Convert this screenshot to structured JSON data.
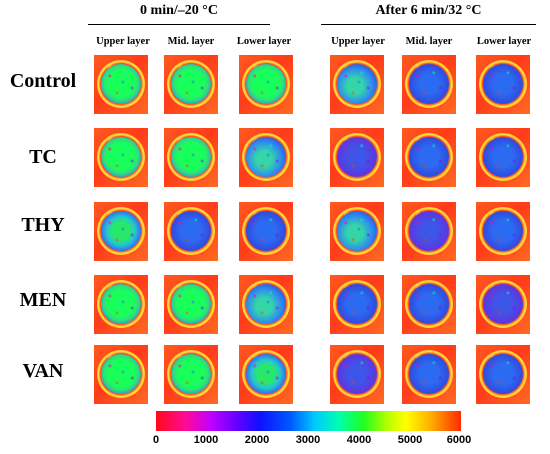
{
  "group_titles": [
    "0 min/–20 °C",
    "After 6 min/32 °C"
  ],
  "column_labels": [
    "Upper layer",
    "Mid. layer",
    "Lower layer",
    "Upper layer",
    "Mid. layer",
    "Lower layer"
  ],
  "row_labels": [
    "Control",
    "TC",
    "THY",
    "MEN",
    "VAN"
  ],
  "colorbar": {
    "ticks": [
      "0",
      "1000",
      "2000",
      "3000",
      "4000",
      "5000",
      "6000"
    ],
    "min": 0,
    "max": 6000
  },
  "tile_colors": [
    [
      "green",
      "green",
      "green",
      "mixed",
      "blue",
      "blue"
    ],
    [
      "green",
      "green",
      "mixed",
      "purple",
      "blue",
      "blue"
    ],
    [
      "green-eq",
      "blue",
      "blue",
      "mixed",
      "purple",
      "blue"
    ],
    [
      "green",
      "green",
      "mixed",
      "blue",
      "blue",
      "purple"
    ],
    [
      "green",
      "green",
      "green-eq",
      "purple",
      "blue",
      "blue"
    ]
  ]
}
